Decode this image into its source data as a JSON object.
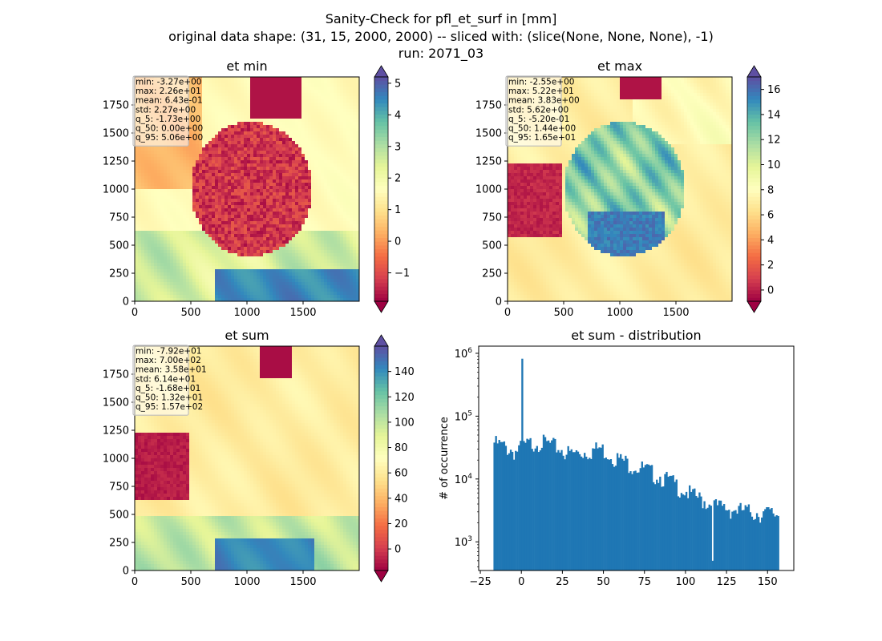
{
  "figure": {
    "title_lines": [
      "Sanity-Check for pfl_et_surf in [mm]",
      "original data shape: (31, 15, 2000, 2000) -- sliced with: (slice(None, None, None), -1)",
      "run: 2071_03"
    ]
  },
  "colors": {
    "cmap": [
      "#9e0142",
      "#d53e4f",
      "#f46d43",
      "#fdae61",
      "#fee08b",
      "#ffffbf",
      "#e6f598",
      "#abdda4",
      "#66c2a5",
      "#3288bd",
      "#5e4fa2"
    ],
    "hist_bar": "#1f77b4"
  },
  "chart_data": [
    {
      "type": "heatmap",
      "name": "min",
      "title": "et min",
      "xlim": [
        0,
        2000
      ],
      "ylim": [
        0,
        2000
      ],
      "x_ticks": [
        0,
        500,
        1000,
        1500
      ],
      "y_ticks": [
        0,
        250,
        500,
        750,
        1000,
        1250,
        1500,
        1750
      ],
      "colorbar_range": [
        -1.9,
        5.2
      ],
      "colorbar_ticks": [
        -1,
        0,
        1,
        2,
        3,
        4,
        5
      ],
      "stats": [
        "min: -3.27e+00",
        "max: 2.26e+01",
        "mean: 6.43e-01",
        "std: 2.27e+00",
        "q_5: -1.73e+00",
        "q_50: 0.00e+00",
        "q_95: 5.06e+00"
      ]
    },
    {
      "type": "heatmap",
      "name": "max",
      "title": "et max",
      "xlim": [
        0,
        2000
      ],
      "ylim": [
        0,
        2000
      ],
      "x_ticks": [
        0,
        500,
        1000,
        1500
      ],
      "y_ticks": [
        0,
        250,
        500,
        750,
        1000,
        1250,
        1500,
        1750
      ],
      "colorbar_range": [
        -0.9,
        17
      ],
      "colorbar_ticks": [
        0,
        2,
        4,
        6,
        8,
        10,
        12,
        14,
        16
      ],
      "stats": [
        "min: -2.55e+00",
        "max: 5.22e+01",
        "mean: 3.83e+00",
        "std: 5.62e+00",
        "q_5: -5.20e-01",
        "q_50: 1.44e+00",
        "q_95: 1.65e+01"
      ]
    },
    {
      "type": "heatmap",
      "name": "sum",
      "title": "et sum",
      "xlim": [
        0,
        2000
      ],
      "ylim": [
        0,
        2000
      ],
      "x_ticks": [
        0,
        500,
        1000,
        1500
      ],
      "y_ticks": [
        0,
        250,
        500,
        750,
        1000,
        1250,
        1500,
        1750
      ],
      "colorbar_range": [
        -17,
        160
      ],
      "colorbar_ticks": [
        0,
        20,
        40,
        60,
        80,
        100,
        120,
        140
      ],
      "stats": [
        "min: -7.92e+01",
        "max: 7.00e+02",
        "mean: 3.58e+01",
        "std: 6.14e+01",
        "q_5: -1.68e+01",
        "q_50: 1.32e+01",
        "q_95: 1.57e+02"
      ]
    },
    {
      "type": "bar",
      "title": "et sum - distribution",
      "ylabel": "# of occurrence",
      "xlabel": "",
      "y_scale": "log",
      "xlim": [
        -26,
        166
      ],
      "ylim": [
        350,
        1300000
      ],
      "x_ticks": [
        -25,
        0,
        25,
        50,
        75,
        100,
        125,
        150
      ],
      "y_ticks": [
        1000,
        10000,
        100000,
        1000000
      ],
      "y_tick_labels": [
        [
          "10",
          "3"
        ],
        [
          "10",
          "4"
        ],
        [
          "10",
          "5"
        ],
        [
          "10",
          "6"
        ]
      ],
      "bin_range": [
        -17,
        157
      ],
      "bin_count": 174,
      "spikes": [
        {
          "x": 0,
          "value": 820000
        },
        {
          "x": 116,
          "value": 500
        }
      ],
      "profile": [
        [
          -17,
          32000
        ],
        [
          -10,
          27000
        ],
        [
          -4,
          23000
        ],
        [
          2,
          28000
        ],
        [
          10,
          34000
        ],
        [
          20,
          28000
        ],
        [
          30,
          21000
        ],
        [
          40,
          23000
        ],
        [
          48,
          26000
        ],
        [
          60,
          17000
        ],
        [
          75,
          12000
        ],
        [
          90,
          8000
        ],
        [
          105,
          4500
        ],
        [
          120,
          3000
        ],
        [
          140,
          2500
        ],
        [
          157,
          2300
        ]
      ]
    }
  ]
}
